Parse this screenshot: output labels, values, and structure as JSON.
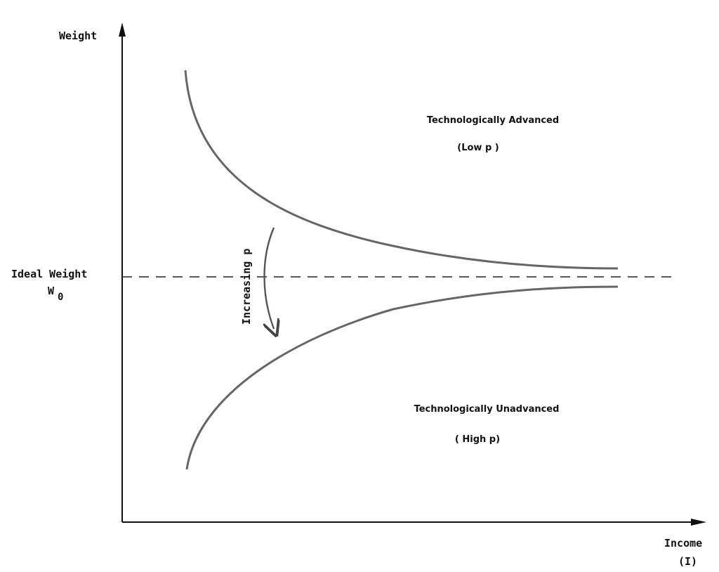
{
  "axes": {
    "y_label": "Weight",
    "x_label_line1": "Income",
    "x_label_line2": "(I)"
  },
  "reference_line": {
    "label": "Ideal Weight",
    "symbol": "W",
    "subscript": "0"
  },
  "regions": {
    "upper_title": "Technologically Advanced",
    "upper_sub": "(Low p )",
    "lower_title": "Technologically Unadvanced",
    "lower_sub": "( High p)"
  },
  "annotation": {
    "arrow_label": "Increasing p"
  }
}
